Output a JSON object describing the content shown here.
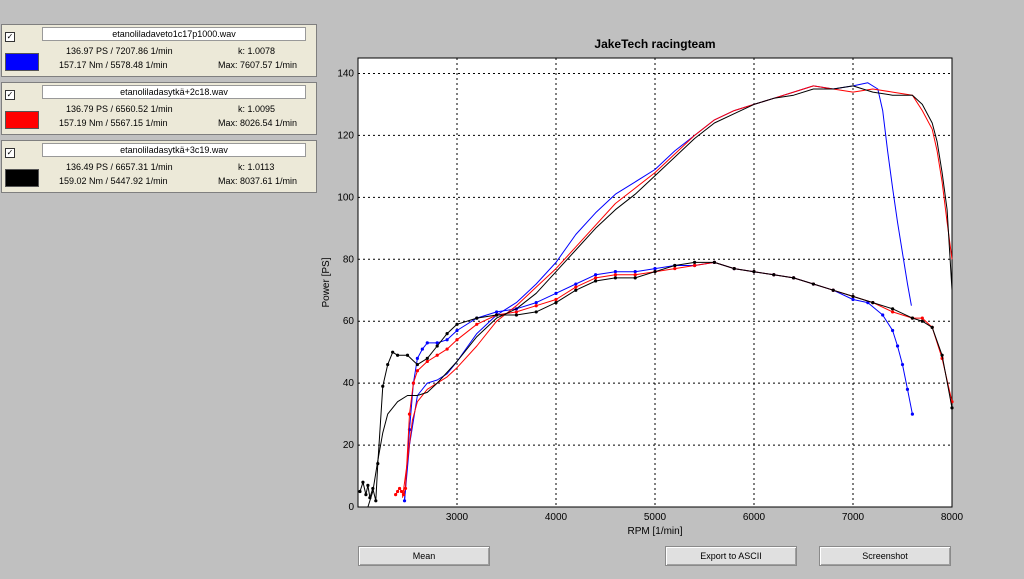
{
  "runs": [
    {
      "checked_mark": "✓",
      "file": "etanoliladaveto1c17p1000.wav",
      "color": "#0000ff",
      "power": "136.97 PS / 7207.86 1/min",
      "k": "k: 1.0078",
      "torque": "157.17 Nm / 5578.48 1/min",
      "max": "Max: 7607.57 1/min"
    },
    {
      "checked_mark": "✓",
      "file": "etanoliladasytkä+2c18.wav",
      "color": "#ff0000",
      "power": "136.79 PS / 6560.52 1/min",
      "k": "k: 1.0095",
      "torque": "157.19 Nm / 5567.15 1/min",
      "max": "Max: 8026.54 1/min"
    },
    {
      "checked_mark": "✓",
      "file": "etanoliladasytkä+3c19.wav",
      "color": "#000000",
      "power": "136.49 PS / 6657.31 1/min",
      "k": "k: 1.0113",
      "torque": "159.02 Nm / 5447.92 1/min",
      "max": "Max: 8037.61 1/min"
    }
  ],
  "buttons": {
    "mean": "Mean",
    "export": "Export to ASCII",
    "screenshot": "Screenshot"
  },
  "chart_data": {
    "type": "line",
    "title": "JakeTech racingteam",
    "xlabel": "RPM [1/min]",
    "ylabel": "Power [PS]",
    "xlim": [
      2000,
      8000
    ],
    "ylim": [
      0,
      145
    ],
    "xticks": [
      "3000",
      "4000",
      "5000",
      "6000",
      "7000",
      "8000"
    ],
    "yticks": [
      "0",
      "20",
      "40",
      "60",
      "80",
      "100",
      "120",
      "140"
    ],
    "grid": true,
    "series": [
      {
        "run": "etanoliladaveto1c17p1000.wav",
        "color": "#0000ff",
        "quantity": "upper",
        "marker": false,
        "x": [
          2470,
          2520,
          2600,
          2700,
          2800,
          2900,
          3000,
          3200,
          3400,
          3600,
          3800,
          4000,
          4200,
          4400,
          4600,
          4800,
          5000,
          5200,
          5400,
          5600,
          5800,
          6000,
          6200,
          6400,
          6600,
          6800,
          7000,
          7150,
          7250,
          7300,
          7350,
          7400,
          7450,
          7500,
          7550,
          7590
        ],
        "y": [
          2,
          20,
          36,
          40,
          41,
          43,
          47,
          56,
          62,
          66,
          72,
          79,
          88,
          95,
          101,
          105,
          109,
          115,
          120,
          125,
          128,
          130,
          132,
          134,
          136,
          135,
          136,
          137,
          135,
          128,
          115,
          103,
          92,
          82,
          72,
          65
        ]
      },
      {
        "run": "etanoliladaveto1c17p1000.wav",
        "color": "#0000ff",
        "quantity": "lower",
        "marker": true,
        "x": [
          2470,
          2520,
          2560,
          2600,
          2650,
          2700,
          2800,
          2900,
          3000,
          3200,
          3400,
          3600,
          3800,
          4000,
          4200,
          4400,
          4600,
          4800,
          5000,
          5200,
          5400,
          5600,
          5800,
          6000,
          6200,
          6400,
          6600,
          6800,
          7000,
          7150,
          7300,
          7400,
          7450,
          7500,
          7550,
          7600
        ],
        "y": [
          2,
          25,
          40,
          48,
          51,
          53,
          53,
          54,
          57,
          61,
          63,
          64,
          66,
          69,
          72,
          75,
          76,
          76,
          77,
          78,
          78,
          79,
          77,
          76,
          75,
          74,
          72,
          70,
          67,
          66,
          62,
          57,
          52,
          46,
          38,
          30
        ]
      },
      {
        "run": "etanoliladasytkä+2c18.wav",
        "color": "#ff0000",
        "quantity": "upper",
        "marker": false,
        "x": [
          2450,
          2500,
          2550,
          2600,
          2700,
          2800,
          2900,
          3000,
          3200,
          3400,
          3600,
          3800,
          4000,
          4200,
          4400,
          4600,
          4800,
          5000,
          5200,
          5400,
          5600,
          5800,
          6000,
          6200,
          6400,
          6600,
          6800,
          7000,
          7200,
          7400,
          7600,
          7700,
          7800,
          7850,
          7900,
          7950,
          8000
        ],
        "y": [
          3,
          15,
          28,
          34,
          38,
          40,
          42,
          45,
          52,
          60,
          65,
          71,
          77,
          84,
          91,
          98,
          103,
          108,
          114,
          120,
          125,
          128,
          130,
          132,
          134,
          136,
          135,
          134,
          135,
          134,
          133,
          128,
          122,
          115,
          105,
          92,
          80
        ]
      },
      {
        "run": "etanoliladasytkä+2c18.wav",
        "color": "#ff0000",
        "quantity": "lower",
        "marker": true,
        "x": [
          2380,
          2400,
          2420,
          2440,
          2460,
          2480,
          2520,
          2560,
          2600,
          2700,
          2800,
          2900,
          3000,
          3200,
          3400,
          3600,
          3800,
          4000,
          4200,
          4400,
          4600,
          4800,
          5000,
          5200,
          5400,
          5600,
          5800,
          6000,
          6200,
          6400,
          6600,
          6800,
          7000,
          7200,
          7400,
          7600,
          7700,
          7800,
          7900,
          8000
        ],
        "y": [
          4,
          5,
          6,
          5,
          4,
          6,
          30,
          40,
          44,
          47,
          49,
          51,
          54,
          59,
          62,
          63,
          65,
          67,
          71,
          74,
          75,
          75,
          76,
          77,
          78,
          79,
          77,
          76,
          75,
          74,
          72,
          70,
          68,
          66,
          63,
          61,
          61,
          58,
          48,
          34
        ]
      },
      {
        "run": "etanoliladasytkä+3c19.wav",
        "color": "#000000",
        "quantity": "upper",
        "marker": false,
        "x": [
          2100,
          2150,
          2200,
          2250,
          2300,
          2400,
          2500,
          2600,
          2700,
          2800,
          3000,
          3200,
          3400,
          3600,
          3800,
          4000,
          4200,
          4400,
          4600,
          4800,
          5000,
          5200,
          5400,
          5600,
          5800,
          6000,
          6200,
          6400,
          6600,
          6800,
          7000,
          7200,
          7400,
          7600,
          7700,
          7800,
          7850,
          7900,
          7950,
          8000
        ],
        "y": [
          0,
          5,
          15,
          24,
          30,
          34,
          36,
          36,
          37,
          40,
          47,
          55,
          61,
          64,
          69,
          76,
          83,
          90,
          96,
          101,
          107,
          113,
          119,
          124,
          127,
          130,
          132,
          133,
          135,
          135,
          136,
          134,
          133,
          133,
          130,
          124,
          118,
          108,
          96,
          70
        ]
      },
      {
        "run": "etanoliladasytkä+3c19.wav",
        "color": "#000000",
        "quantity": "lower",
        "marker": true,
        "x": [
          2020,
          2050,
          2080,
          2100,
          2120,
          2150,
          2180,
          2200,
          2250,
          2300,
          2350,
          2400,
          2500,
          2600,
          2700,
          2800,
          2900,
          3000,
          3200,
          3400,
          3600,
          3800,
          4000,
          4200,
          4400,
          4600,
          4800,
          5000,
          5200,
          5400,
          5600,
          5800,
          6000,
          6200,
          6400,
          6600,
          6800,
          7000,
          7200,
          7400,
          7600,
          7700,
          7800,
          7900,
          8000
        ],
        "y": [
          5,
          8,
          4,
          7,
          3,
          6,
          2,
          14,
          39,
          46,
          50,
          49,
          49,
          46,
          48,
          52,
          56,
          59,
          61,
          62,
          62,
          63,
          66,
          70,
          73,
          74,
          74,
          76,
          78,
          79,
          79,
          77,
          76,
          75,
          74,
          72,
          70,
          68,
          66,
          64,
          61,
          60,
          58,
          49,
          32
        ]
      }
    ]
  }
}
